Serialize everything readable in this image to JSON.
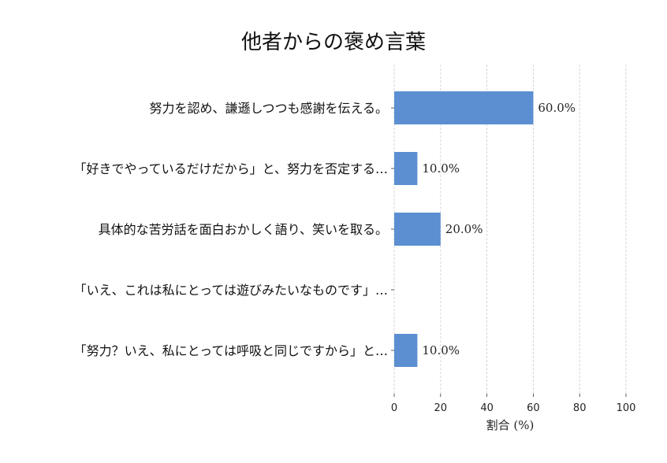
{
  "chart_data": {
    "type": "bar",
    "orientation": "horizontal",
    "title": "他者からの褒め言葉",
    "xlabel": "割合 (%)",
    "ylabel": "",
    "xlim": [
      0,
      100
    ],
    "xticks": [
      0,
      20,
      40,
      60,
      80,
      100
    ],
    "grid": "x-dashed",
    "categories": [
      "努力を認め、謙遜しつつも感謝を伝える。",
      "「好きでやっているだけだから」と、努力を否定する…",
      "具体的な苦労話を面白おかしく語り、笑いを取る。",
      "「いえ、これは私にとっては遊びみたいなものです」…",
      "「努力？いえ、私にとっては呼吸と同じですから」と…"
    ],
    "values": [
      60.0,
      10.0,
      20.0,
      0.0,
      10.0
    ],
    "data_labels": [
      "60.0%",
      "10.0%",
      "20.0%",
      "",
      "10.0%"
    ],
    "bar_color": "#5b8fd1"
  }
}
